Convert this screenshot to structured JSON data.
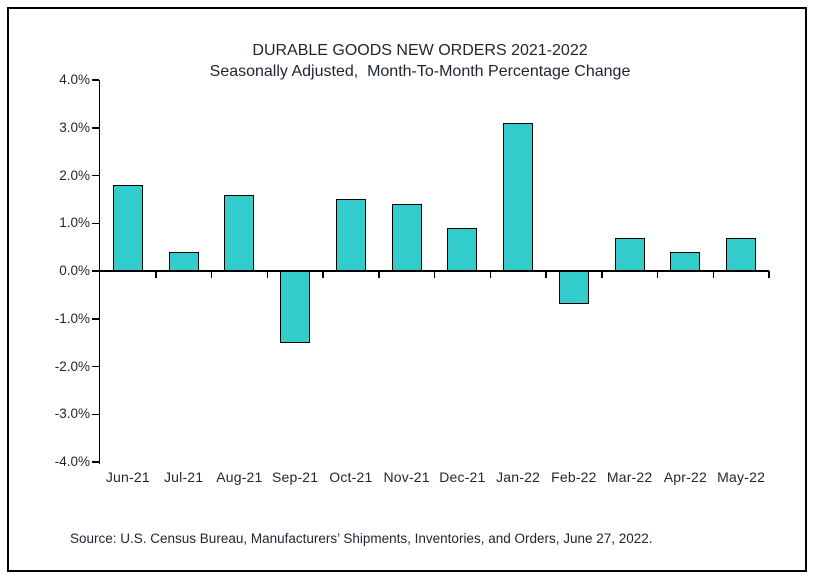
{
  "chart_data": {
    "type": "bar",
    "title": "DURABLE GOODS NEW ORDERS 2021-2022",
    "subtitle": "Seasonally Adjusted,  Month-To-Month Percentage Change",
    "categories": [
      "Jun-21",
      "Jul-21",
      "Aug-21",
      "Sep-21",
      "Oct-21",
      "Nov-21",
      "Dec-21",
      "Jan-22",
      "Feb-22",
      "Mar-22",
      "Apr-22",
      "May-22"
    ],
    "values": [
      1.8,
      0.4,
      1.6,
      -1.5,
      1.5,
      1.4,
      0.9,
      3.1,
      -0.7,
      0.7,
      0.4,
      0.7
    ],
    "series_name": "Durable goods new orders, month-to-month % change",
    "xlabel": "",
    "ylabel": "",
    "ylim": [
      -4.0,
      4.0
    ],
    "ytick_step": 1.0,
    "ytick_labels": [
      "4.0%",
      "3.0%",
      "2.0%",
      "1.0%",
      "0.0%",
      "-1.0%",
      "-2.0%",
      "-3.0%",
      "-4.0%"
    ],
    "grid": false,
    "legend": false,
    "colors": {
      "bar_fill": "#33CCCC",
      "bar_border": "#000000",
      "axis": "#000000",
      "text": "#1E2430",
      "background": "#FFFFFF"
    },
    "source": "Source: U.S. Census Bureau, Manufacturers’ Shipments, Inventories, and Orders, June 27, 2022."
  }
}
